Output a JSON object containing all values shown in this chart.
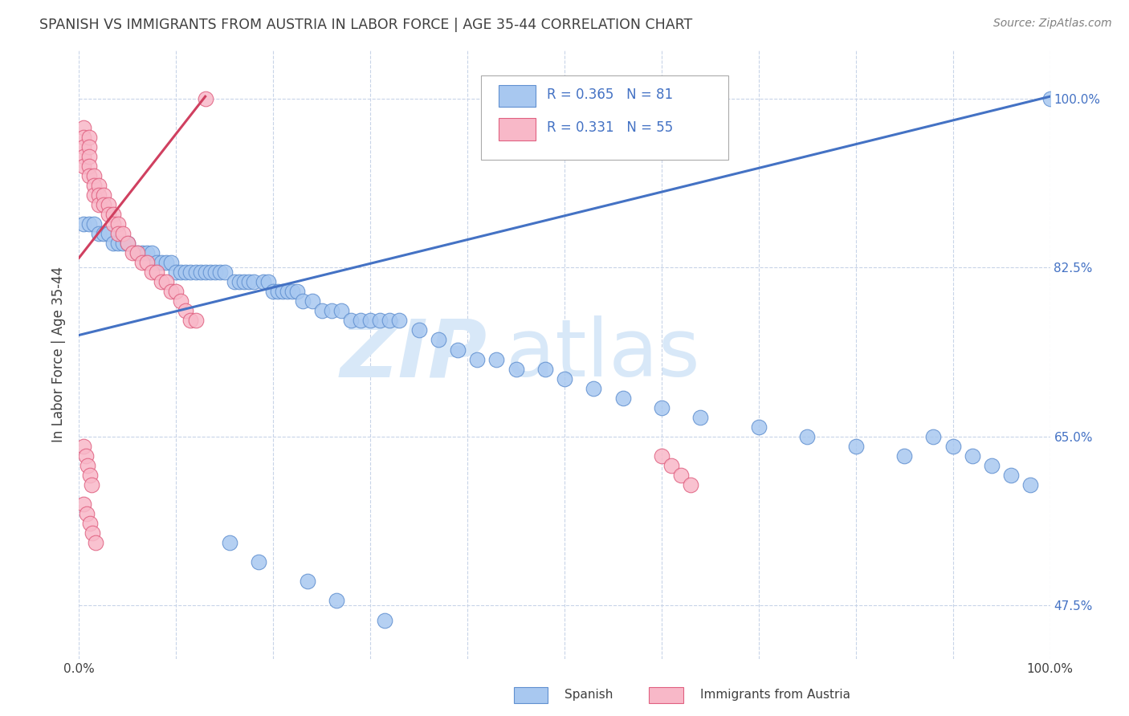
{
  "title": "SPANISH VS IMMIGRANTS FROM AUSTRIA IN LABOR FORCE | AGE 35-44 CORRELATION CHART",
  "source": "Source: ZipAtlas.com",
  "ylabel": "In Labor Force | Age 35-44",
  "xlim": [
    0,
    1
  ],
  "ylim": [
    0.42,
    1.05
  ],
  "yticks": [
    0.475,
    0.65,
    0.825,
    1.0
  ],
  "ytick_labels": [
    "47.5%",
    "65.0%",
    "82.5%",
    "100.0%"
  ],
  "legend_r_blue": "R = 0.365",
  "legend_n_blue": "N = 81",
  "legend_r_pink": "R = 0.331",
  "legend_n_pink": "N = 55",
  "blue_color": "#A8C8F0",
  "pink_color": "#F8B8C8",
  "blue_edge_color": "#6090D0",
  "pink_edge_color": "#E06080",
  "blue_line_color": "#4472C4",
  "pink_line_color": "#D04060",
  "title_color": "#404040",
  "source_color": "#808080",
  "tick_color_right": "#4472C4",
  "watermark": "ZIPatlas",
  "watermark_color": "#D8E8F8",
  "blue_regression": {
    "x_start": 0.0,
    "y_start": 0.755,
    "x_end": 1.0,
    "y_end": 1.002
  },
  "pink_regression": {
    "x_start": 0.0,
    "y_start": 0.835,
    "x_end": 0.13,
    "y_end": 1.002
  },
  "blue_x": [
    0.005,
    0.01,
    0.015,
    0.02,
    0.025,
    0.03,
    0.035,
    0.04,
    0.045,
    0.05,
    0.06,
    0.065,
    0.07,
    0.075,
    0.08,
    0.085,
    0.09,
    0.095,
    0.1,
    0.105,
    0.11,
    0.115,
    0.12,
    0.125,
    0.13,
    0.135,
    0.14,
    0.145,
    0.15,
    0.16,
    0.165,
    0.17,
    0.175,
    0.18,
    0.19,
    0.195,
    0.2,
    0.205,
    0.21,
    0.215,
    0.22,
    0.225,
    0.23,
    0.24,
    0.25,
    0.26,
    0.27,
    0.28,
    0.29,
    0.3,
    0.31,
    0.32,
    0.33,
    0.35,
    0.37,
    0.39,
    0.41,
    0.43,
    0.45,
    0.48,
    0.5,
    0.53,
    0.56,
    0.6,
    0.64,
    0.7,
    0.75,
    0.8,
    0.85,
    0.88,
    0.9,
    0.92,
    0.94,
    0.96,
    0.98,
    1.0,
    0.155,
    0.185,
    0.235,
    0.265,
    0.315
  ],
  "blue_y": [
    0.87,
    0.87,
    0.87,
    0.86,
    0.86,
    0.86,
    0.85,
    0.85,
    0.85,
    0.85,
    0.84,
    0.84,
    0.84,
    0.84,
    0.83,
    0.83,
    0.83,
    0.83,
    0.82,
    0.82,
    0.82,
    0.82,
    0.82,
    0.82,
    0.82,
    0.82,
    0.82,
    0.82,
    0.82,
    0.81,
    0.81,
    0.81,
    0.81,
    0.81,
    0.81,
    0.81,
    0.8,
    0.8,
    0.8,
    0.8,
    0.8,
    0.8,
    0.79,
    0.79,
    0.78,
    0.78,
    0.78,
    0.77,
    0.77,
    0.77,
    0.77,
    0.77,
    0.77,
    0.76,
    0.75,
    0.74,
    0.73,
    0.73,
    0.72,
    0.72,
    0.71,
    0.7,
    0.69,
    0.68,
    0.67,
    0.66,
    0.65,
    0.64,
    0.63,
    0.65,
    0.64,
    0.63,
    0.62,
    0.61,
    0.6,
    1.0,
    0.54,
    0.52,
    0.5,
    0.48,
    0.46
  ],
  "pink_x": [
    0.005,
    0.005,
    0.005,
    0.005,
    0.005,
    0.01,
    0.01,
    0.01,
    0.01,
    0.01,
    0.015,
    0.015,
    0.015,
    0.02,
    0.02,
    0.02,
    0.025,
    0.025,
    0.03,
    0.03,
    0.035,
    0.035,
    0.04,
    0.04,
    0.045,
    0.05,
    0.055,
    0.06,
    0.065,
    0.07,
    0.075,
    0.08,
    0.085,
    0.09,
    0.095,
    0.1,
    0.105,
    0.11,
    0.115,
    0.12,
    0.005,
    0.007,
    0.009,
    0.011,
    0.013,
    0.005,
    0.008,
    0.011,
    0.014,
    0.017,
    0.6,
    0.61,
    0.62,
    0.63,
    0.13
  ],
  "pink_y": [
    0.97,
    0.96,
    0.95,
    0.94,
    0.93,
    0.96,
    0.95,
    0.94,
    0.93,
    0.92,
    0.92,
    0.91,
    0.9,
    0.91,
    0.9,
    0.89,
    0.9,
    0.89,
    0.89,
    0.88,
    0.88,
    0.87,
    0.87,
    0.86,
    0.86,
    0.85,
    0.84,
    0.84,
    0.83,
    0.83,
    0.82,
    0.82,
    0.81,
    0.81,
    0.8,
    0.8,
    0.79,
    0.78,
    0.77,
    0.77,
    0.64,
    0.63,
    0.62,
    0.61,
    0.6,
    0.58,
    0.57,
    0.56,
    0.55,
    0.54,
    0.63,
    0.62,
    0.61,
    0.6,
    1.0
  ]
}
